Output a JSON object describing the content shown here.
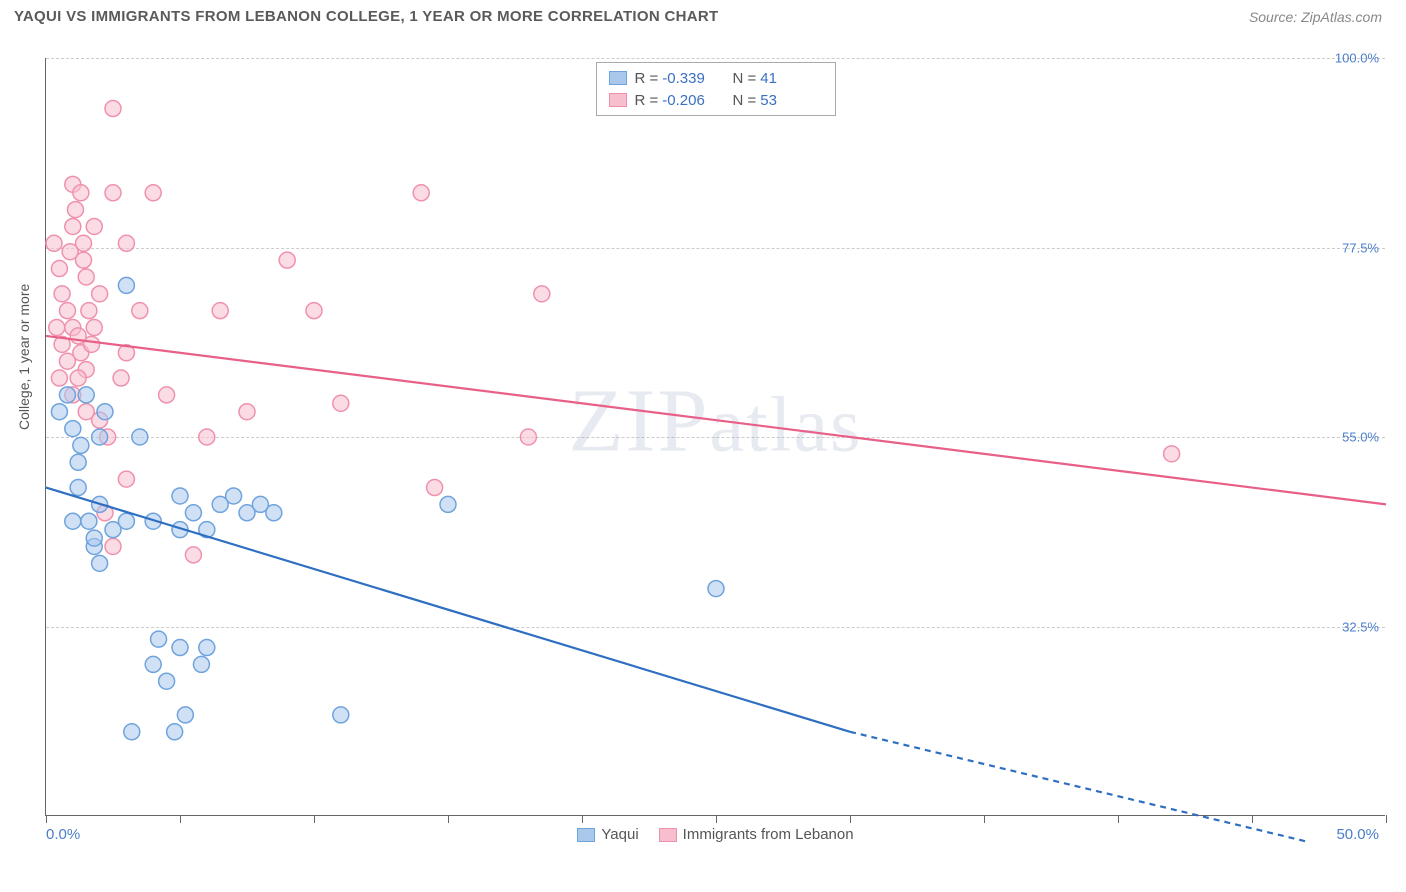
{
  "header": {
    "title": "YAQUI VS IMMIGRANTS FROM LEBANON COLLEGE, 1 YEAR OR MORE CORRELATION CHART",
    "source": "Source: ZipAtlas.com"
  },
  "axis": {
    "y_title": "College, 1 year or more",
    "x_min": 0,
    "x_max": 50,
    "y_min": 10,
    "y_max": 100,
    "x_ticks": [
      0,
      5,
      10,
      15,
      20,
      25,
      30,
      35,
      40,
      45,
      50
    ],
    "x_labels": [
      {
        "v": 0,
        "t": "0.0%"
      },
      {
        "v": 50,
        "t": "50.0%"
      }
    ],
    "y_grid": [
      {
        "v": 32.5,
        "t": "32.5%"
      },
      {
        "v": 55.0,
        "t": "55.0%"
      },
      {
        "v": 77.5,
        "t": "77.5%"
      },
      {
        "v": 100.0,
        "t": "100.0%"
      }
    ]
  },
  "watermark": "ZIPatlas",
  "series": {
    "a": {
      "name": "Yaqui",
      "color_fill": "#a9c8ec",
      "color_stroke": "#6fa3dd",
      "line_color": "#2f6fc1",
      "r": -0.339,
      "n": 41,
      "regression": {
        "x1": 0,
        "y1": 49,
        "x2": 30,
        "y2": 20,
        "x2_ext": 47,
        "y2_ext": 7
      },
      "points": [
        [
          0.5,
          58
        ],
        [
          0.8,
          60
        ],
        [
          1.0,
          56
        ],
        [
          1.2,
          52
        ],
        [
          1.3,
          54
        ],
        [
          1.2,
          49
        ],
        [
          1.6,
          45
        ],
        [
          1.8,
          42
        ],
        [
          1.5,
          60
        ],
        [
          2.0,
          55
        ],
        [
          2.2,
          58
        ],
        [
          2.0,
          47
        ],
        [
          2.5,
          44
        ],
        [
          1.0,
          45
        ],
        [
          1.8,
          43
        ],
        [
          2.0,
          40
        ],
        [
          3.0,
          73
        ],
        [
          3.5,
          55
        ],
        [
          4.0,
          28
        ],
        [
          4.2,
          31
        ],
        [
          4.5,
          26
        ],
        [
          5.0,
          48
        ],
        [
          5.2,
          22
        ],
        [
          5.5,
          46
        ],
        [
          5.8,
          28
        ],
        [
          4.8,
          20
        ],
        [
          5.0,
          30
        ],
        [
          6.0,
          44
        ],
        [
          6.5,
          47
        ],
        [
          7.0,
          48
        ],
        [
          7.5,
          46
        ],
        [
          8.0,
          47
        ],
        [
          8.5,
          46
        ],
        [
          3.0,
          45
        ],
        [
          3.2,
          20
        ],
        [
          11.0,
          22
        ],
        [
          15.0,
          47
        ],
        [
          25.0,
          37
        ],
        [
          5.0,
          44
        ],
        [
          4.0,
          45
        ],
        [
          6.0,
          30
        ]
      ]
    },
    "b": {
      "name": "Immigrants from Lebanon",
      "color_fill": "#f7bfce",
      "color_stroke": "#ef91ad",
      "line_color": "#e85f87",
      "r": -0.206,
      "n": 53,
      "regression": {
        "x1": 0,
        "y1": 67,
        "x2": 50,
        "y2": 47
      },
      "points": [
        [
          0.3,
          78
        ],
        [
          0.5,
          75
        ],
        [
          0.6,
          72
        ],
        [
          0.8,
          70
        ],
        [
          1.0,
          80
        ],
        [
          1.0,
          68
        ],
        [
          1.2,
          67
        ],
        [
          1.3,
          65
        ],
        [
          1.4,
          76
        ],
        [
          1.5,
          74
        ],
        [
          1.5,
          63
        ],
        [
          1.6,
          70
        ],
        [
          1.8,
          68
        ],
        [
          1.5,
          58
        ],
        [
          1.0,
          85
        ],
        [
          1.3,
          84
        ],
        [
          1.2,
          62
        ],
        [
          2.0,
          57
        ],
        [
          2.2,
          46
        ],
        [
          2.5,
          84
        ],
        [
          2.3,
          55
        ],
        [
          2.5,
          42
        ],
        [
          3.0,
          78
        ],
        [
          3.0,
          65
        ],
        [
          3.5,
          70
        ],
        [
          4.0,
          84
        ],
        [
          5.5,
          41
        ],
        [
          6.0,
          55
        ],
        [
          6.5,
          70
        ],
        [
          7.5,
          58
        ],
        [
          9.0,
          76
        ],
        [
          10.0,
          70
        ],
        [
          11.0,
          59
        ],
        [
          14.0,
          84
        ],
        [
          14.5,
          49
        ],
        [
          18.0,
          55
        ],
        [
          18.5,
          72
        ],
        [
          2.5,
          94
        ],
        [
          3.0,
          50
        ],
        [
          1.8,
          80
        ],
        [
          1.0,
          60
        ],
        [
          0.8,
          64
        ],
        [
          0.6,
          66
        ],
        [
          0.5,
          62
        ],
        [
          1.4,
          78
        ],
        [
          2.0,
          72
        ],
        [
          0.4,
          68
        ],
        [
          42.0,
          53
        ],
        [
          1.1,
          82
        ],
        [
          0.9,
          77
        ],
        [
          1.7,
          66
        ],
        [
          2.8,
          62
        ],
        [
          4.5,
          60
        ]
      ]
    }
  },
  "legend_bottom": [
    {
      "key": "a"
    },
    {
      "key": "b"
    }
  ],
  "marker_radius": 8,
  "marker_opacity": 0.55,
  "line_width": 2.2
}
